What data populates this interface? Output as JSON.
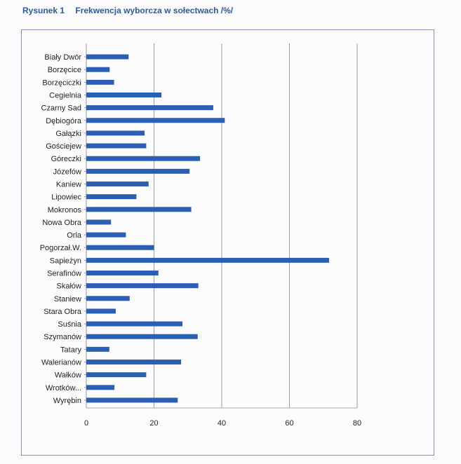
{
  "header": {
    "figure_label": "Rysunek 1",
    "caption": "Frekwencja wyborcza w sołectwach /%/"
  },
  "chart_data": {
    "type": "bar",
    "orientation": "horizontal",
    "title": "",
    "categories": [
      "Biały Dwór",
      "Borzęcice",
      "Borzęciczki",
      "Cegielnia",
      "Czarny Sad",
      "Dębiogóra",
      "Gałązki",
      "Gościejew",
      "Góreczki",
      "Józefów",
      "Kaniew",
      "Lipowiec",
      "Mokronos",
      "Nowa Obra",
      "Orla",
      "Pogorzał.W.",
      "Sapieżyn",
      "Serafinów",
      "Skałów",
      "Staniew",
      "Stara Obra",
      "Suśnia",
      "Szymanów",
      "Tatary",
      "Walerianów",
      "Wałków",
      "Wrotków...",
      "Wyrębin"
    ],
    "values": [
      12.5,
      6.9,
      8.2,
      22.2,
      37.5,
      40.9,
      17.2,
      17.7,
      33.6,
      30.5,
      18.4,
      14.8,
      31.0,
      7.3,
      11.7,
      20.0,
      71.7,
      21.3,
      33.1,
      12.8,
      8.7,
      28.4,
      32.9,
      6.8,
      28.0,
      17.7,
      8.3,
      27.0
    ],
    "xlim": [
      0,
      80
    ],
    "xticks": [
      "0",
      "20",
      "40",
      "60",
      "80"
    ],
    "grid": "vertical",
    "bar_color": "#2b5fb4",
    "legend": "none"
  }
}
